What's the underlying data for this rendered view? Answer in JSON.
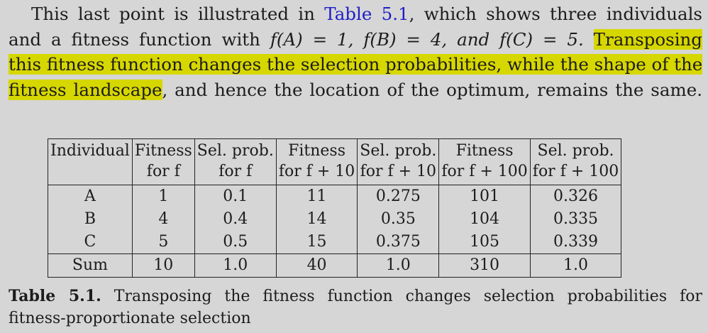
{
  "paragraph": {
    "l1_a": "This last point is illustrated in ",
    "l1_link": "Table 5.1",
    "l1_b": ", which shows three individuals",
    "l2_a": "and a fitness function with ",
    "l2_math": "f(A) = 1, f(B) = 4, and f(C) = 5.",
    "l2_hl": "Transposing",
    "l3_hl": "this fitness function changes the selection probabilities, while the shape of the",
    "l4_hl": "fitness landscape",
    "l4_b": ", and hence the location of the optimum, remains the same."
  },
  "highlight_color": "#d7d700",
  "link_color": "#1d1dc8",
  "table": {
    "headers_row1": [
      "Individual",
      "Fitness",
      "Sel. prob.",
      "Fitness",
      "Sel. prob.",
      "Fitness",
      "Sel. prob."
    ],
    "headers_row2": [
      "",
      "for f",
      "for f",
      "for f + 10",
      "for f + 10",
      "for f + 100",
      "for f + 100"
    ],
    "rows": [
      [
        "A",
        "1",
        "0.1",
        "11",
        "0.275",
        "101",
        "0.326"
      ],
      [
        "B",
        "4",
        "0.4",
        "14",
        "0.35",
        "104",
        "0.335"
      ],
      [
        "C",
        "5",
        "0.5",
        "15",
        "0.375",
        "105",
        "0.339"
      ]
    ],
    "sum_row": [
      "Sum",
      "10",
      "1.0",
      "40",
      "1.0",
      "310",
      "1.0"
    ]
  },
  "caption": {
    "label": "Table 5.1.",
    "text_line1": "Transposing the fitness function changes selection probabilities for",
    "text_line2": "fitness-proportionate selection"
  }
}
